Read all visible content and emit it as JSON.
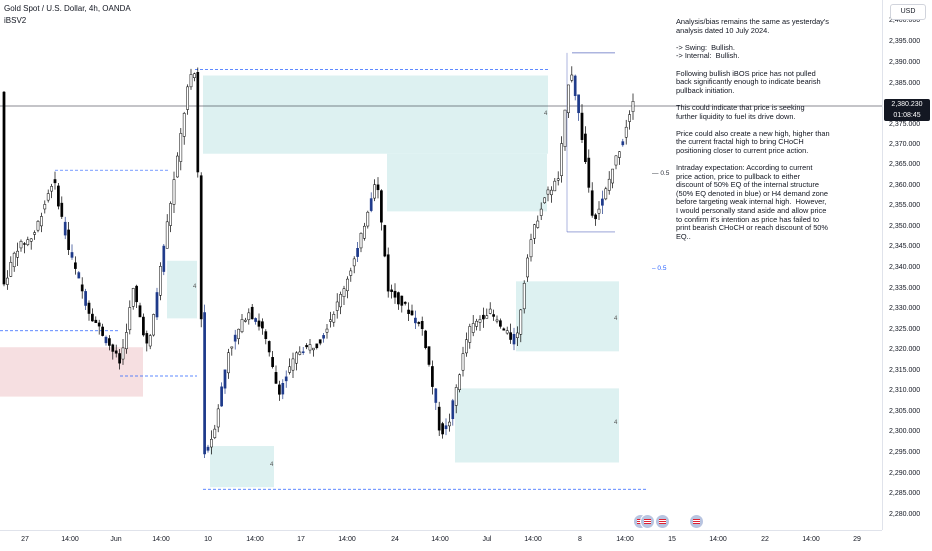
{
  "header": {
    "symbol_line": "Gold Spot / U.S. Dollar, 4h, OANDA",
    "indicator": "iBSV2"
  },
  "currency_badge": "USD",
  "current_price": {
    "price": "2,380.230",
    "countdown": "01:08:45"
  },
  "price_axis": {
    "ticks": [
      "2,400.000",
      "2,395.000",
      "2,390.000",
      "2,385.000",
      "2,375.000",
      "2,370.000",
      "2,365.000",
      "2,360.000",
      "2,355.000",
      "2,350.000",
      "2,345.000",
      "2,340.000",
      "2,335.000",
      "2,330.000",
      "2,325.000",
      "2,320.000",
      "2,315.000",
      "2,310.000",
      "2,305.000",
      "2,300.000",
      "2,295.000",
      "2,290.000",
      "2,285.000",
      "2,280.000"
    ]
  },
  "time_axis": {
    "ticks": [
      "27",
      "14:00",
      "Jun",
      "14:00",
      "10",
      "14:00",
      "17",
      "14:00",
      "24",
      "14:00",
      "Jul",
      "14:00",
      "8",
      "14:00",
      "15",
      "14:00",
      "22",
      "14:00",
      "29"
    ]
  },
  "notes": {
    "text": "Analysis/bias remains the same as yesterday's\nanalysis dated 10 July 2024.\n\n-> Swing:  Bullish.\n-> Internal:  Bullish.\n\nFollowing bullish iBOS price has not pulled\nback significantly enough to indicate bearish\npullback initiation.\n\nThis could indicate that price is seeking\nfurther liquidity to fuel its drive down.\n\nPrice could also create a new high, higher than\nthe current fractal high to bring CHoCH\npositioning closer to current price action.\n\nIntraday expectation: According to current\nprice action, price to pullback to either\ndiscount of 50% EQ of the internal structure\n(50% EQ denoted in blue) or H4 demand zone\nbefore targeting weak internal high.  However,\nI would personally stand aside and allow price\nto confirm it's intention as price has failed to\nprint bearish CHoCH or reach discount of 50%\nEQ.."
  },
  "fib_labels": {
    "black": "0.5",
    "blue": "0.5"
  },
  "colors": {
    "bull_candle": "#ffffff",
    "bear_candle": "#000000",
    "ibos_candle": "#1e3a8a",
    "demand_zone": "#d7eeee",
    "supply_zone": "#f5d9dc",
    "dashed_line": "#2962ff"
  },
  "icons": [
    "us-flag-icon",
    "us-flag-icon",
    "us-flag-icon",
    "us-flag-icon"
  ]
}
